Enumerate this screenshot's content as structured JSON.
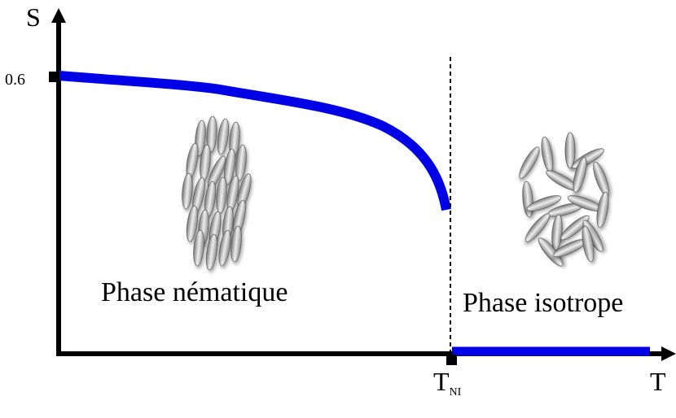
{
  "axes": {
    "y_label": "S",
    "x_label": "T",
    "y_tick": "0.6",
    "x_mark": "T",
    "x_mark_sub": "NI"
  },
  "phases": {
    "nematic": "Phase nématique",
    "isotropic": "Phase isotrope"
  }
}
